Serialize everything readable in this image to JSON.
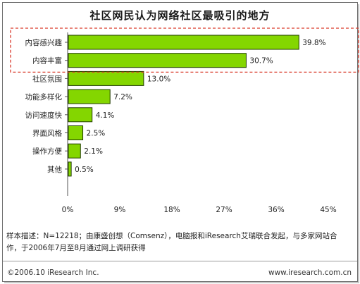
{
  "title": "社区网民认为网络社区最吸引的地方",
  "chart_data": {
    "type": "bar",
    "orientation": "horizontal",
    "categories": [
      "内容感兴趣",
      "内容丰富",
      "社区氛围",
      "功能多样化",
      "访问速度快",
      "界面风格",
      "操作方便",
      "其他"
    ],
    "values": [
      39.8,
      30.7,
      13.0,
      7.2,
      4.1,
      2.5,
      2.1,
      0.5
    ],
    "value_labels": [
      "39.8%",
      "30.7%",
      "13.0%",
      "7.2%",
      "4.1%",
      "2.5%",
      "2.1%",
      "0.5%"
    ],
    "xlim": [
      0,
      45
    ],
    "x_ticks": [
      "0%",
      "9%",
      "18%",
      "27%",
      "36%",
      "45%"
    ],
    "bar_color": "#84d600",
    "grid": false,
    "highlight_box_color": "#d93a2b"
  },
  "note": "样本描述：N=12218；由康盛创想（Comsenz），电脑报和iResearch艾瑞联合发起，与多家网站合作，于2006年7月至8月通过网上调研获得",
  "footer": {
    "left": "©2006.10 iResearch Inc.",
    "right": "www.iresearch.com.cn"
  }
}
